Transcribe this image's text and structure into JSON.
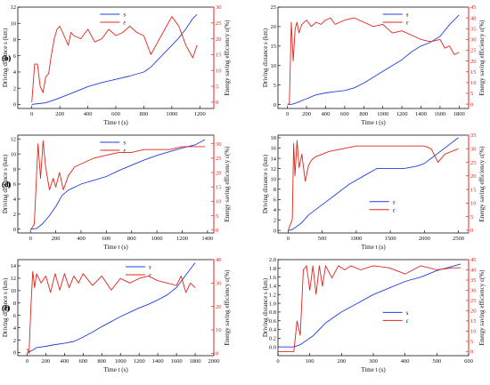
{
  "colors": {
    "s": "#1f3fe0",
    "eps": "#e0241b",
    "axis": "#111111"
  },
  "chart_data": [
    {
      "type": "line",
      "panel_label": "(a)",
      "xlabel": "Time t (s)",
      "ylabel": "Driving distance s (km)",
      "y2label": "Energy saving efficiency ε(%)",
      "xlim": [
        -100,
        1300
      ],
      "xticks": [
        0,
        200,
        400,
        600,
        800,
        1000,
        1200
      ],
      "xticklabels": [
        "0",
        "200",
        "400",
        "600",
        "800",
        "1000",
        "1200"
      ],
      "ylim": [
        -0.5,
        12
      ],
      "yticks": [
        0,
        2,
        4,
        6,
        8,
        10,
        12
      ],
      "yticklabels": [
        "0",
        "2",
        "4",
        "6",
        "8",
        "10",
        "12"
      ],
      "y2lim": [
        -2,
        30
      ],
      "y2ticks": [
        0,
        5,
        10,
        15,
        20,
        25,
        30
      ],
      "y2ticklabels": [
        "0",
        "5",
        "10",
        "15",
        "20",
        "25",
        "30"
      ],
      "show_xlabel": true,
      "series": [
        {
          "name": "s",
          "axis": "left",
          "x": [
            0,
            50,
            100,
            150,
            200,
            300,
            400,
            500,
            600,
            700,
            800,
            850,
            900,
            950,
            1000,
            1050,
            1100,
            1150,
            1180
          ],
          "y": [
            0,
            0.1,
            0.2,
            0.5,
            0.8,
            1.5,
            2.2,
            2.7,
            3.1,
            3.5,
            4.0,
            4.6,
            5.5,
            6.4,
            7.3,
            8.2,
            9.3,
            10.6,
            11.1
          ]
        },
        {
          "name": "ε",
          "axis": "right",
          "x": [
            0,
            20,
            40,
            60,
            80,
            100,
            120,
            140,
            160,
            180,
            200,
            220,
            240,
            260,
            280,
            300,
            350,
            400,
            450,
            500,
            550,
            600,
            650,
            700,
            750,
            800,
            850,
            900,
            950,
            1000,
            1050,
            1100,
            1150,
            1180
          ],
          "y": [
            0,
            12,
            12,
            5,
            3,
            8,
            9,
            15,
            20,
            23,
            24,
            22,
            20,
            18,
            22,
            21,
            20,
            23,
            19,
            20,
            23,
            21,
            22,
            24,
            22,
            21,
            15,
            19,
            23,
            27,
            24,
            18,
            14,
            18
          ]
        }
      ],
      "legend": {
        "position": "top-center"
      }
    },
    {
      "type": "line",
      "panel_label": "(b)",
      "xlabel": "Time t (s)",
      "ylabel": "Driving distance s (km)",
      "y2label": "Energy saving efficiency ε(%)",
      "xlim": [
        -100,
        1900
      ],
      "xticks": [
        0,
        200,
        400,
        600,
        800,
        1000,
        1200,
        1400,
        1600,
        1800
      ],
      "xticklabels": [
        "0",
        "200",
        "400",
        "600",
        "800",
        "1000",
        "1200",
        "1400",
        "1600",
        "1800"
      ],
      "ylim": [
        -1,
        25
      ],
      "yticks": [
        0,
        5,
        10,
        15,
        20,
        25
      ],
      "yticklabels": [
        "0",
        "5",
        "10",
        "15",
        "20",
        "25"
      ],
      "y2lim": [
        -2,
        45
      ],
      "y2ticks": [
        0,
        5,
        10,
        15,
        20,
        25,
        30,
        35,
        40,
        45
      ],
      "y2ticklabels": [
        "0",
        "5",
        "10",
        "15",
        "20",
        "25",
        "30",
        "35",
        "40",
        "45"
      ],
      "show_xlabel": true,
      "series": [
        {
          "name": "s",
          "axis": "left",
          "x": [
            0,
            50,
            100,
            200,
            300,
            400,
            500,
            600,
            700,
            800,
            900,
            1000,
            1100,
            1200,
            1300,
            1400,
            1500,
            1600,
            1700,
            1800
          ],
          "y": [
            0,
            0.1,
            0.5,
            1.5,
            2.5,
            3.0,
            3.3,
            3.6,
            4.3,
            5.5,
            7.0,
            8.5,
            10.0,
            11.5,
            13.5,
            15.0,
            16.0,
            17.5,
            20.5,
            23.0
          ]
        },
        {
          "name": "ε",
          "axis": "right",
          "x": [
            0,
            20,
            40,
            60,
            80,
            100,
            120,
            150,
            200,
            250,
            300,
            350,
            400,
            450,
            500,
            600,
            700,
            800,
            900,
            1000,
            1100,
            1200,
            1300,
            1400,
            1500,
            1600,
            1650,
            1700,
            1750,
            1800
          ],
          "y": [
            0,
            0,
            38,
            20,
            35,
            38,
            33,
            37,
            39,
            36,
            38,
            37,
            39,
            40,
            37,
            39,
            40,
            38,
            36,
            37,
            33,
            34,
            32,
            30,
            29,
            30,
            26,
            27,
            23,
            24
          ]
        }
      ],
      "legend": {
        "position": "top-right"
      }
    },
    {
      "type": "line",
      "panel_label": "(c)",
      "xlabel": "Time t (s)",
      "ylabel": "Driving distance s (km)",
      "y2label": "Energy saving efficiency ε(%)",
      "xlim": [
        -100,
        1450
      ],
      "xticks": [
        0,
        200,
        400,
        600,
        800,
        1000,
        1200,
        1400
      ],
      "xticklabels": [
        "0",
        "200",
        "400",
        "600",
        "800",
        "1000",
        "1200",
        "1400"
      ],
      "ylim": [
        -0.5,
        12.5
      ],
      "yticks": [
        0,
        2,
        4,
        6,
        8,
        10,
        12
      ],
      "yticklabels": [
        "0",
        "2",
        "4",
        "6",
        "8",
        "10",
        "12"
      ],
      "y2lim": [
        -1,
        33
      ],
      "y2ticks": [
        0,
        5,
        10,
        15,
        20,
        25,
        30
      ],
      "y2ticklabels": [
        "0",
        "5",
        "10",
        "15",
        "20",
        "25",
        "30"
      ],
      "show_xlabel": true,
      "series": [
        {
          "name": "s",
          "axis": "left",
          "x": [
            0,
            50,
            100,
            150,
            200,
            250,
            300,
            400,
            500,
            600,
            700,
            800,
            900,
            1000,
            1100,
            1200,
            1300,
            1380
          ],
          "y": [
            0,
            0.1,
            0.8,
            1.8,
            3.0,
            4.5,
            5.2,
            6.0,
            6.5,
            7.0,
            7.8,
            8.5,
            9.2,
            9.8,
            10.3,
            10.8,
            11.2,
            11.9
          ]
        },
        {
          "name": "ε",
          "axis": "right",
          "x": [
            0,
            30,
            60,
            80,
            100,
            120,
            150,
            180,
            200,
            230,
            260,
            300,
            350,
            400,
            450,
            500,
            600,
            700,
            800,
            900,
            1000,
            1100,
            1200,
            1300,
            1380
          ],
          "y": [
            0,
            2,
            30,
            18,
            31,
            22,
            14,
            18,
            15,
            20,
            14,
            19,
            22,
            23,
            24,
            25,
            26,
            27,
            27,
            28,
            28,
            28,
            29,
            29,
            29
          ]
        }
      ],
      "legend": {
        "position": "top-center"
      }
    },
    {
      "type": "line",
      "panel_label": "(d)",
      "xlabel": "Time t (s)",
      "ylabel": "Driving distance s (km)",
      "y2label": "Energy saving efficiency ε(%)",
      "xlim": [
        -150,
        2650
      ],
      "xticks": [
        0,
        500,
        1000,
        1500,
        2000,
        2500
      ],
      "xticklabels": [
        "0",
        "500",
        "1000",
        "1500",
        "2000",
        "2500"
      ],
      "ylim": [
        -0.5,
        18.5
      ],
      "yticks": [
        0,
        2,
        4,
        6,
        8,
        10,
        12,
        14,
        16,
        18
      ],
      "yticklabels": [
        "0",
        "2",
        "4",
        "6",
        "8",
        "10",
        "12",
        "14",
        "16",
        "18"
      ],
      "y2lim": [
        -1,
        35
      ],
      "y2ticks": [
        0,
        5,
        10,
        15,
        20,
        25,
        30,
        35
      ],
      "y2ticklabels": [
        "0",
        "5",
        "10",
        "15",
        "20",
        "25",
        "30",
        "35"
      ],
      "show_xlabel": true,
      "series": [
        {
          "name": "s",
          "axis": "left",
          "x": [
            0,
            50,
            100,
            200,
            300,
            500,
            700,
            900,
            1100,
            1300,
            1500,
            1700,
            1900,
            2000,
            2100,
            2200,
            2300,
            2400,
            2500
          ],
          "y": [
            0,
            0.1,
            0.5,
            1.5,
            3.0,
            5.0,
            7.0,
            9.0,
            10.5,
            12.0,
            12.0,
            12.0,
            12.5,
            13.0,
            14.0,
            15.0,
            16.0,
            17.0,
            18.0
          ]
        },
        {
          "name": "ε",
          "axis": "right",
          "x": [
            0,
            60,
            80,
            100,
            130,
            160,
            200,
            250,
            300,
            350,
            400,
            500,
            600,
            800,
            1000,
            1200,
            1400,
            1600,
            1800,
            2000,
            2100,
            2200,
            2300,
            2400,
            2500
          ],
          "y": [
            0,
            4,
            32,
            20,
            33,
            23,
            28,
            18,
            24,
            26,
            27,
            28,
            29,
            30,
            31,
            31,
            31,
            31,
            31,
            31,
            30,
            25,
            28,
            29,
            30
          ]
        }
      ],
      "legend": {
        "position": "bottom-right"
      }
    },
    {
      "type": "line",
      "panel_label": "(e)",
      "xlabel": "Time t (s)",
      "ylabel": "Driving distance s (km)",
      "y2label": "Energy saving efficiency ε(%)",
      "xlim": [
        -100,
        2000
      ],
      "xticks": [
        0,
        200,
        400,
        600,
        800,
        1000,
        1200,
        1400,
        1600,
        1800,
        2000
      ],
      "xticklabels": [
        "0",
        "200",
        "400",
        "600",
        "800",
        "1000",
        "1200",
        "1400",
        "1600",
        "1800",
        "2000"
      ],
      "ylim": [
        -0.5,
        15
      ],
      "yticks": [
        0,
        2,
        4,
        6,
        8,
        10,
        12,
        14
      ],
      "yticklabels": [
        "0",
        "2",
        "4",
        "6",
        "8",
        "10",
        "12",
        "14"
      ],
      "y2lim": [
        -1,
        40
      ],
      "y2ticks": [
        0,
        10,
        20,
        30,
        40
      ],
      "y2ticklabels": [
        "0",
        "10",
        "20",
        "30",
        "40"
      ],
      "show_xlabel": true,
      "series": [
        {
          "name": "s",
          "axis": "left",
          "x": [
            0,
            50,
            100,
            200,
            300,
            400,
            500,
            600,
            700,
            800,
            900,
            1000,
            1100,
            1200,
            1300,
            1400,
            1500,
            1600,
            1700,
            1800
          ],
          "y": [
            0,
            0.3,
            0.8,
            1.0,
            1.3,
            1.5,
            1.8,
            2.5,
            3.3,
            4.2,
            5.0,
            5.8,
            6.5,
            7.2,
            7.8,
            8.5,
            9.3,
            10.5,
            12.5,
            14.5
          ]
        },
        {
          "name": "ε",
          "axis": "right",
          "x": [
            0,
            20,
            40,
            60,
            80,
            100,
            150,
            200,
            250,
            300,
            350,
            400,
            450,
            500,
            550,
            600,
            700,
            800,
            900,
            1000,
            1100,
            1200,
            1300,
            1400,
            1500,
            1600,
            1650,
            1700,
            1750,
            1800
          ],
          "y": [
            2,
            0,
            20,
            35,
            28,
            34,
            30,
            33,
            26,
            34,
            27,
            34,
            28,
            33,
            30,
            34,
            29,
            33,
            27,
            32,
            30,
            32,
            33,
            31,
            30,
            29,
            33,
            26,
            30,
            28
          ]
        }
      ],
      "legend": {
        "position": "top-right"
      }
    },
    {
      "type": "line",
      "panel_label": "(f)",
      "xlabel": "Time t (s)",
      "ylabel": "Driving distance s (km)",
      "y2label": "Energy saving efficiency ε(%)",
      "xlim": [
        0,
        600
      ],
      "xticks": [
        0,
        100,
        200,
        300,
        400,
        500,
        600
      ],
      "xticklabels": [
        "0",
        "100",
        "200",
        "300",
        "400",
        "500",
        "600"
      ],
      "ylim": [
        -0.2,
        2.0
      ],
      "yticks": [
        0,
        0.2,
        0.4,
        0.6,
        0.8,
        1.0,
        1.2,
        1.4,
        1.6,
        1.8,
        2.0
      ],
      "yticklabels": [
        "0.0",
        "0.2",
        "0.4",
        "0.6",
        "0.8",
        "1.0",
        "1.2",
        "1.4",
        "1.6",
        "1.8",
        "2.0"
      ],
      "y2lim": [
        -2,
        45
      ],
      "y2ticks": [
        0,
        5,
        10,
        15,
        20,
        25,
        30,
        35,
        40,
        45
      ],
      "y2ticklabels": [
        "0",
        "5",
        "10",
        "15",
        "20",
        "25",
        "30",
        "35",
        "40",
        "45"
      ],
      "show_xlabel": true,
      "series": [
        {
          "name": "s",
          "axis": "left",
          "x": [
            0,
            50,
            70,
            90,
            110,
            130,
            150,
            180,
            200,
            250,
            300,
            350,
            400,
            450,
            500,
            550,
            575
          ],
          "y": [
            0,
            0,
            0.05,
            0.15,
            0.25,
            0.4,
            0.55,
            0.7,
            0.8,
            1.0,
            1.2,
            1.35,
            1.5,
            1.6,
            1.75,
            1.85,
            1.9
          ]
        },
        {
          "name": "ε",
          "axis": "right",
          "x": [
            0,
            50,
            60,
            70,
            80,
            90,
            100,
            110,
            120,
            130,
            140,
            150,
            170,
            190,
            210,
            230,
            260,
            300,
            350,
            400,
            450,
            500,
            550,
            575
          ],
          "y": [
            0,
            0,
            15,
            8,
            40,
            42,
            30,
            42,
            28,
            42,
            32,
            42,
            36,
            42,
            40,
            42,
            40,
            42,
            41,
            38,
            42,
            40,
            41,
            41
          ]
        }
      ],
      "legend": {
        "position": "center-right"
      }
    }
  ]
}
